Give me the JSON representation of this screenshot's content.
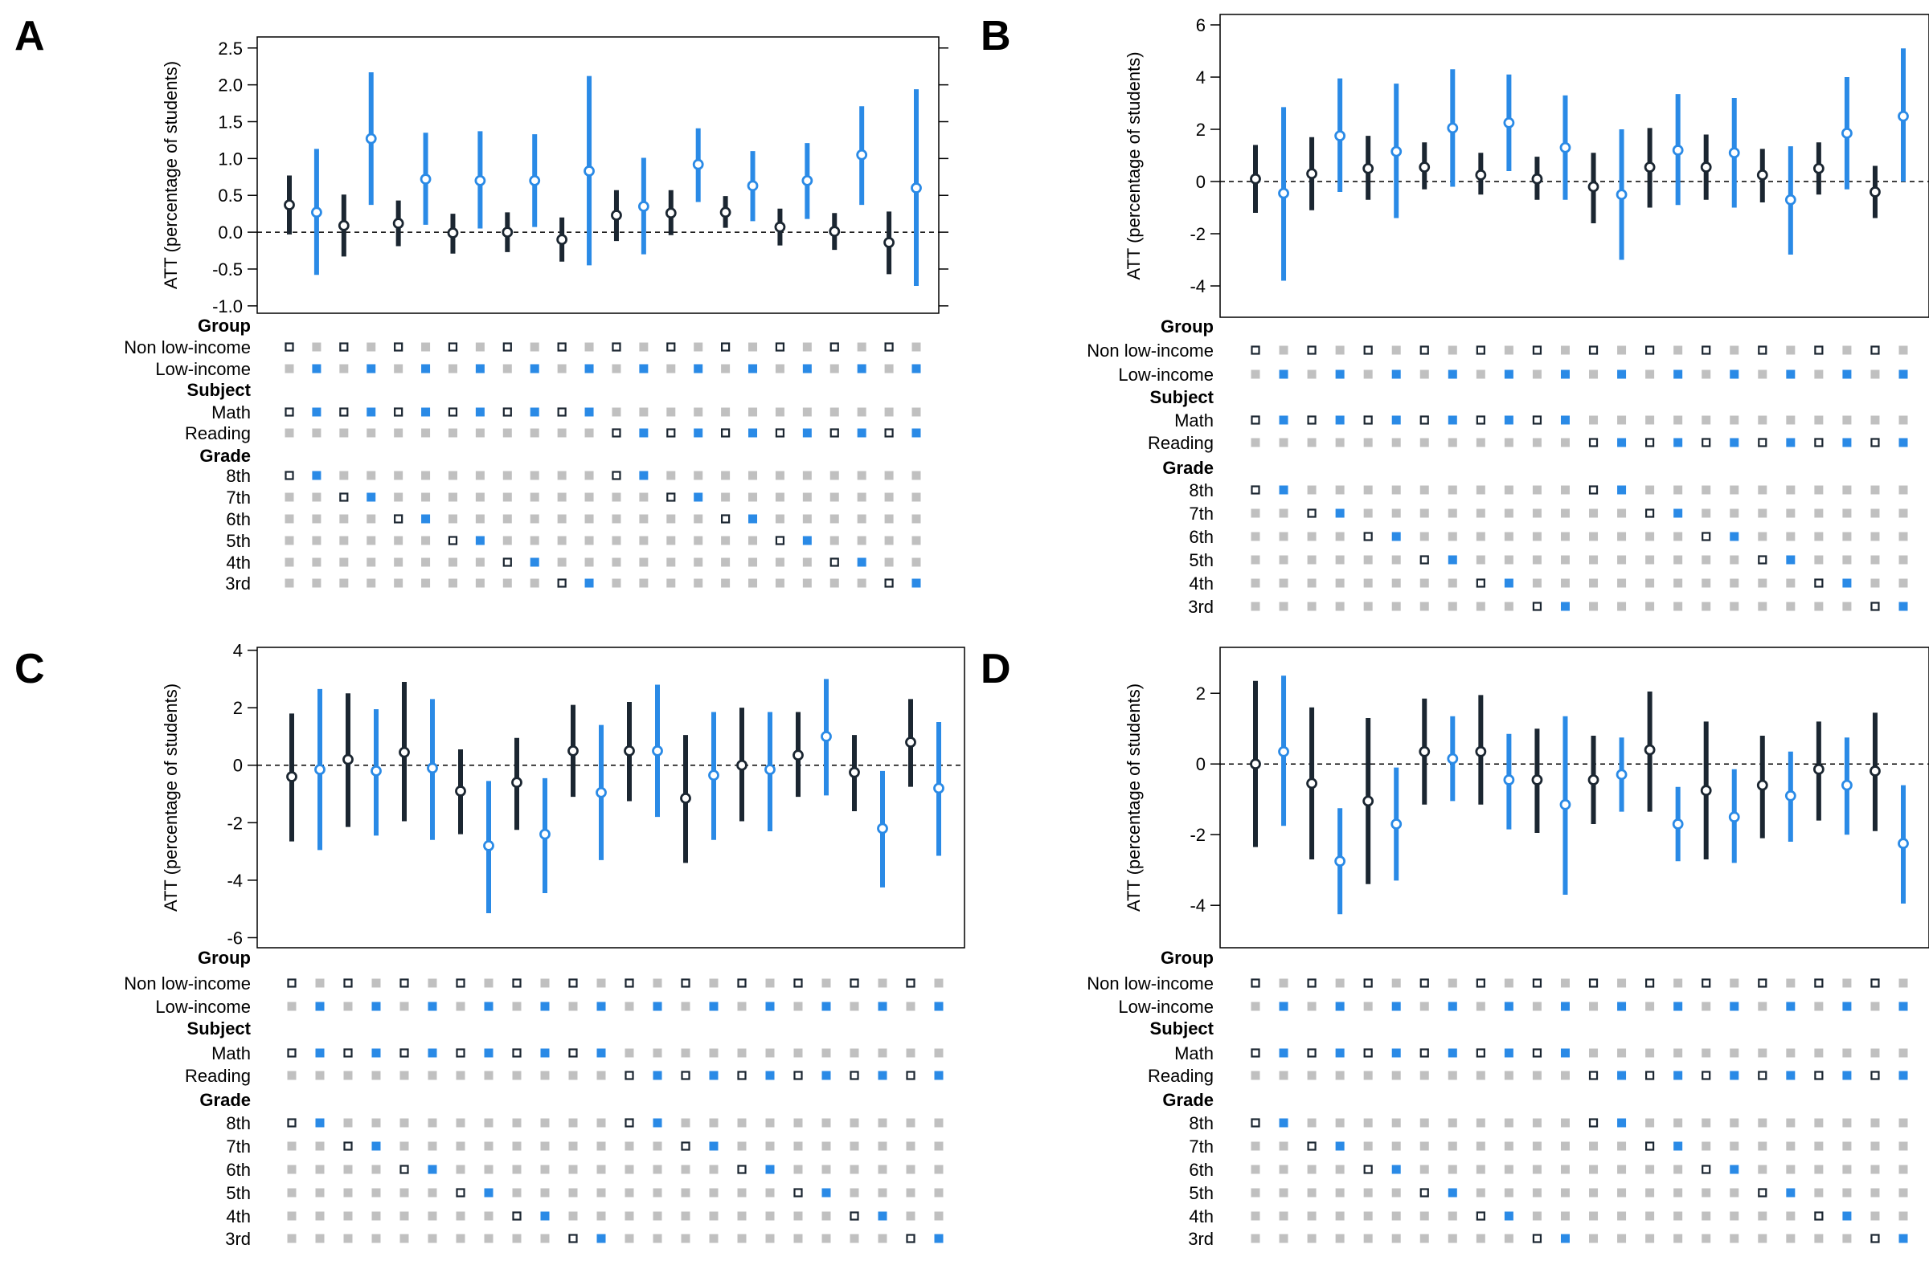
{
  "colors": {
    "nonlow": "#1b2631",
    "low": "#2a8ae6",
    "inactive": "#c0c0c0",
    "frame": "#000000",
    "refline": "#000000"
  },
  "ylabel": "ATT (percentage of students)",
  "matrix": {
    "group_header": "Group",
    "group_rows": [
      "Non low-income",
      "Low-income"
    ],
    "subject_header": "Subject",
    "subject_rows": [
      "Math",
      "Reading"
    ],
    "grade_header": "Grade",
    "grade_rows": [
      "8th",
      "7th",
      "6th",
      "5th",
      "4th",
      "3rd"
    ]
  },
  "chart_data": [
    {
      "panel": "A",
      "type": "errorbar",
      "ylim": [
        -1.1,
        2.65
      ],
      "yticks": [
        "2.5",
        "2.0",
        "1.5",
        "1.0",
        "0.5",
        "0.0",
        "-0.5",
        "-1.0"
      ],
      "ytick_values": [
        2.5,
        2.0,
        1.5,
        1.0,
        0.5,
        0.0,
        -0.5,
        -1.0
      ],
      "estimate": [
        0.37,
        0.27,
        0.09,
        1.27,
        0.12,
        0.72,
        -0.01,
        0.7,
        0.0,
        0.7,
        -0.1,
        0.83,
        0.23,
        0.35,
        0.26,
        0.92,
        0.27,
        0.63,
        0.07,
        0.7,
        0.01,
        1.05,
        -0.14,
        0.6
      ],
      "lower": [
        -0.03,
        -0.58,
        -0.33,
        0.37,
        -0.19,
        0.1,
        -0.29,
        0.05,
        -0.27,
        0.07,
        -0.4,
        -0.45,
        -0.12,
        -0.3,
        -0.04,
        0.41,
        0.06,
        0.15,
        -0.18,
        0.18,
        -0.24,
        0.37,
        -0.57,
        -0.73
      ],
      "upper": [
        0.77,
        1.13,
        0.51,
        2.17,
        0.43,
        1.35,
        0.25,
        1.37,
        0.27,
        1.33,
        0.2,
        2.12,
        0.57,
        1.01,
        0.57,
        1.41,
        0.49,
        1.1,
        0.32,
        1.21,
        0.26,
        1.71,
        0.28,
        1.94
      ]
    },
    {
      "panel": "B",
      "type": "errorbar",
      "ylim": [
        -5.2,
        6.4
      ],
      "yticks": [
        "6",
        "4",
        "2",
        "0",
        "-2",
        "-4"
      ],
      "ytick_values": [
        6,
        4,
        2,
        0,
        -2,
        -4
      ],
      "estimate": [
        0.1,
        -0.45,
        0.3,
        1.75,
        0.5,
        1.15,
        0.55,
        2.05,
        0.25,
        2.25,
        0.1,
        1.3,
        -0.2,
        -0.5,
        0.55,
        1.2,
        0.55,
        1.1,
        0.25,
        -0.7,
        0.5,
        1.85,
        -0.4,
        2.5
      ],
      "lower": [
        -1.2,
        -3.8,
        -1.1,
        -0.4,
        -0.7,
        -1.4,
        -0.3,
        -0.2,
        -0.5,
        0.4,
        -0.7,
        -0.7,
        -1.6,
        -3.0,
        -1.0,
        -0.9,
        -0.7,
        -1.0,
        -0.8,
        -2.8,
        -0.5,
        -0.3,
        -1.4,
        0.0
      ],
      "upper": [
        1.4,
        2.85,
        1.7,
        3.95,
        1.75,
        3.75,
        1.5,
        4.3,
        1.1,
        4.1,
        0.95,
        3.3,
        1.1,
        2.0,
        2.05,
        3.35,
        1.8,
        3.2,
        1.25,
        1.35,
        1.5,
        4.0,
        0.6,
        5.1
      ]
    },
    {
      "panel": "C",
      "type": "errorbar",
      "ylim": [
        -6.35,
        4.1
      ],
      "yticks": [
        "4",
        "2",
        "0",
        "-2",
        "-4",
        "-6"
      ],
      "ytick_values": [
        4,
        2,
        0,
        -2,
        -4,
        -6
      ],
      "estimate": [
        -0.4,
        -0.15,
        0.2,
        -0.2,
        0.45,
        -0.1,
        -0.9,
        -2.8,
        -0.6,
        -2.4,
        0.5,
        -0.95,
        0.5,
        0.5,
        -1.15,
        -0.35,
        0.0,
        -0.15,
        0.35,
        1.0,
        -0.25,
        -2.2,
        0.8,
        -0.8
      ],
      "lower": [
        -2.65,
        -2.95,
        -2.15,
        -2.45,
        -1.95,
        -2.6,
        -2.4,
        -5.15,
        -2.25,
        -4.45,
        -1.1,
        -3.3,
        -1.25,
        -1.8,
        -3.4,
        -2.6,
        -1.95,
        -2.3,
        -1.1,
        -1.05,
        -1.6,
        -4.25,
        -0.75,
        -3.15
      ],
      "upper": [
        1.8,
        2.65,
        2.5,
        1.95,
        2.9,
        2.3,
        0.55,
        -0.55,
        0.95,
        -0.45,
        2.1,
        1.4,
        2.2,
        2.8,
        1.05,
        1.85,
        2.0,
        1.85,
        1.85,
        3.0,
        1.05,
        -0.2,
        2.3,
        1.5
      ]
    },
    {
      "panel": "D",
      "type": "errorbar",
      "ylim": [
        -5.2,
        3.3
      ],
      "yticks": [
        "2",
        "0",
        "-2",
        "-4"
      ],
      "ytick_values": [
        2,
        0,
        -2,
        -4
      ],
      "estimate": [
        0.0,
        0.35,
        -0.55,
        -2.75,
        -1.05,
        -1.7,
        0.35,
        0.15,
        0.35,
        -0.45,
        -0.45,
        -1.15,
        -0.45,
        -0.3,
        0.4,
        -1.7,
        -0.75,
        -1.5,
        -0.6,
        -0.9,
        -0.15,
        -0.6,
        -0.2,
        -2.25
      ],
      "lower": [
        -2.35,
        -1.75,
        -2.7,
        -4.25,
        -3.4,
        -3.3,
        -1.15,
        -1.05,
        -1.15,
        -1.85,
        -1.95,
        -3.7,
        -1.7,
        -1.35,
        -1.35,
        -2.75,
        -2.7,
        -2.8,
        -2.1,
        -2.2,
        -1.6,
        -2.0,
        -1.9,
        -3.95
      ],
      "upper": [
        2.35,
        2.5,
        1.6,
        -1.25,
        1.3,
        -0.1,
        1.85,
        1.35,
        1.95,
        0.85,
        1.0,
        1.35,
        0.8,
        0.75,
        2.05,
        -0.65,
        1.2,
        -0.15,
        0.8,
        0.35,
        1.2,
        0.75,
        1.45,
        -0.6
      ]
    }
  ]
}
